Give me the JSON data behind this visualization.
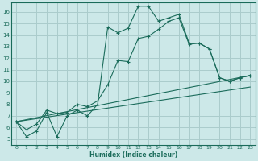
{
  "xlabel": "Humidex (Indice chaleur)",
  "xlim": [
    -0.5,
    23.5
  ],
  "ylim": [
    4.5,
    16.8
  ],
  "xticks": [
    0,
    1,
    2,
    3,
    4,
    5,
    6,
    7,
    8,
    9,
    10,
    11,
    12,
    13,
    14,
    15,
    16,
    17,
    18,
    19,
    20,
    21,
    22,
    23
  ],
  "yticks": [
    5,
    6,
    7,
    8,
    9,
    10,
    11,
    12,
    13,
    14,
    15,
    16
  ],
  "background_color": "#cce8e8",
  "grid_color": "#aacccc",
  "line_color": "#1a6b5a",
  "line1_x": [
    0,
    1,
    2,
    3,
    4,
    5,
    6,
    7,
    8,
    9,
    10,
    11,
    12,
    13,
    14,
    15,
    16,
    17,
    18,
    19,
    20,
    21,
    22,
    23
  ],
  "line1_y": [
    6.5,
    5.2,
    5.7,
    7.3,
    5.2,
    7.0,
    7.5,
    7.0,
    8.0,
    14.7,
    14.2,
    14.6,
    16.5,
    16.5,
    15.2,
    15.5,
    15.8,
    13.3,
    13.3,
    12.8,
    10.3,
    10.0,
    10.3,
    10.5
  ],
  "line2_x": [
    0,
    1,
    2,
    3,
    4,
    5,
    6,
    7,
    8,
    9,
    10,
    11,
    12,
    13,
    14,
    15,
    16,
    17,
    18,
    19,
    20,
    21,
    22,
    23
  ],
  "line2_y": [
    6.5,
    5.8,
    6.3,
    7.5,
    7.2,
    7.3,
    8.0,
    7.8,
    8.3,
    9.7,
    11.8,
    11.7,
    13.7,
    13.9,
    14.5,
    15.2,
    15.5,
    13.2,
    13.3,
    12.8,
    10.3,
    10.0,
    10.3,
    10.5
  ],
  "line3_x": [
    0,
    23
  ],
  "line3_y": [
    6.5,
    10.5
  ],
  "line4_x": [
    0,
    23
  ],
  "line4_y": [
    6.5,
    9.5
  ]
}
